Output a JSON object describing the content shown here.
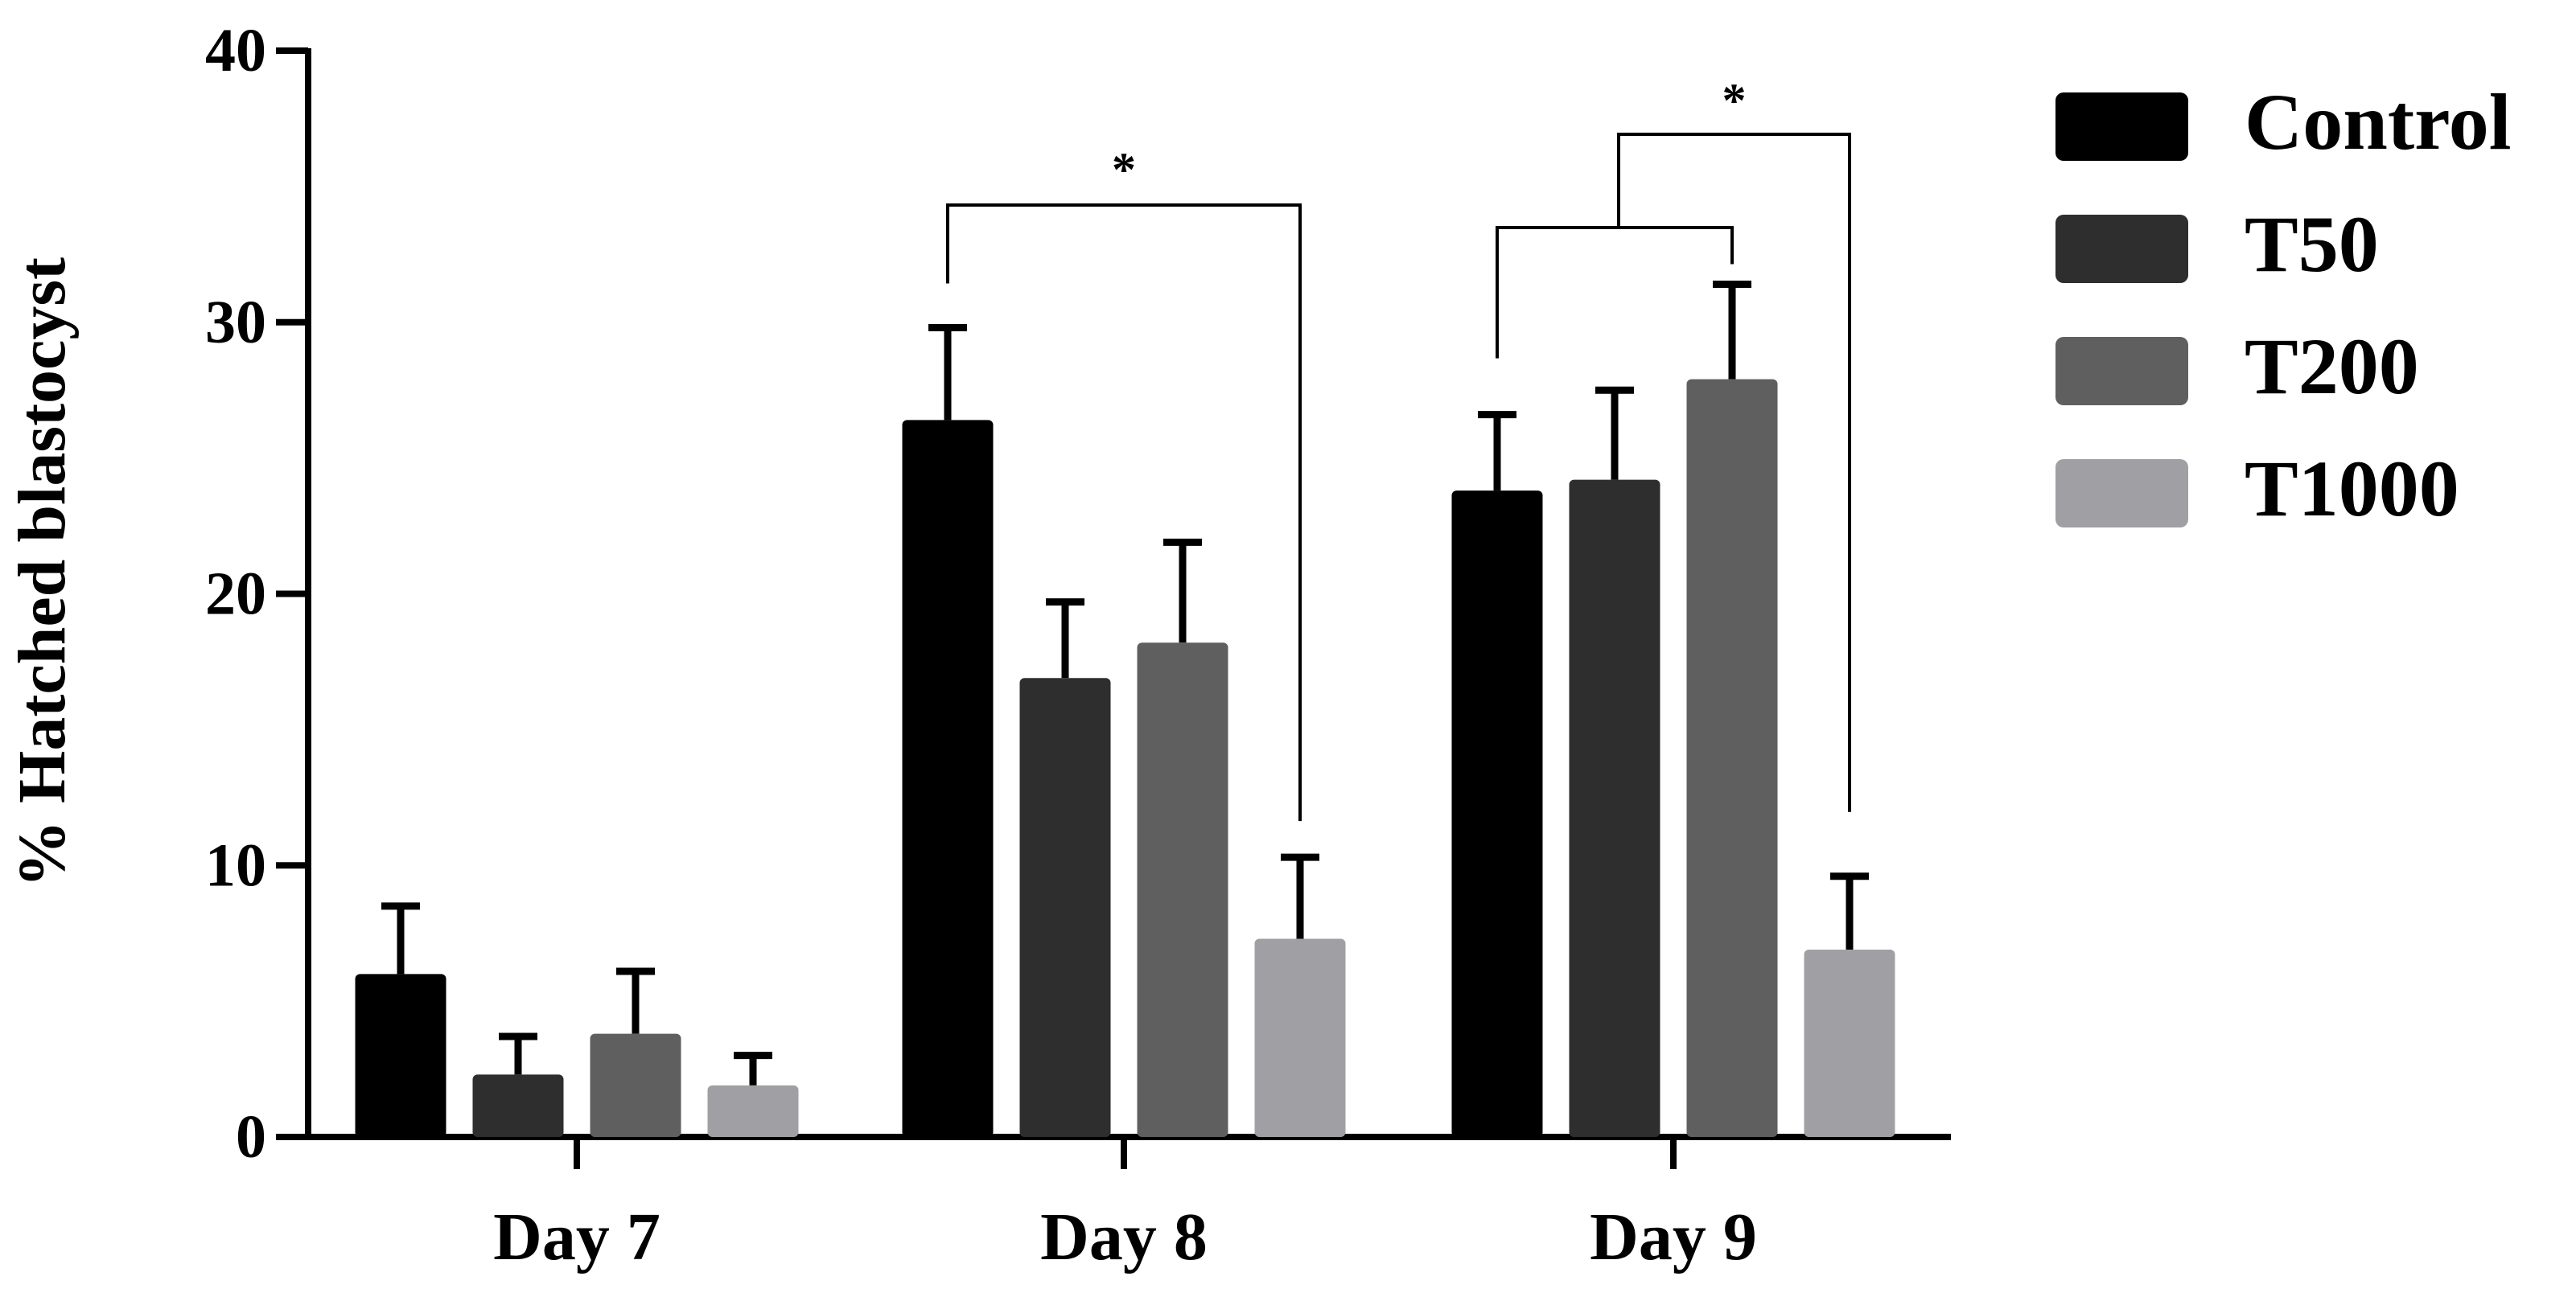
{
  "chart_data": {
    "type": "bar",
    "title": "",
    "xlabel": "",
    "ylabel": "% Hatched blastocyst",
    "ylim": [
      0,
      40
    ],
    "yticks": [
      0,
      10,
      20,
      30,
      40
    ],
    "categories": [
      "Day 7",
      "Day 8",
      "Day 9"
    ],
    "series": [
      {
        "name": "Control",
        "color": "#000000",
        "values": [
          6.0,
          26.4,
          23.8
        ],
        "errors": [
          2.5,
          3.4,
          2.8
        ]
      },
      {
        "name": "T50",
        "color": "#2e2e2e",
        "values": [
          2.3,
          16.9,
          24.2
        ],
        "errors": [
          1.4,
          2.8,
          3.3
        ]
      },
      {
        "name": "T200",
        "color": "#5f5f5f",
        "values": [
          3.8,
          18.2,
          27.9
        ],
        "errors": [
          2.3,
          3.7,
          3.5
        ]
      },
      {
        "name": "T1000",
        "color": "#a0a0a4",
        "values": [
          1.9,
          7.3,
          6.9
        ],
        "errors": [
          1.1,
          3.0,
          2.7
        ]
      }
    ],
    "significance": [
      {
        "category": "Day 8",
        "from": "Control",
        "to": "T1000",
        "label": "*"
      },
      {
        "category": "Day 9",
        "group": [
          "Control",
          "T200"
        ],
        "to": "T1000",
        "label": "*"
      }
    ],
    "legend_position": "right",
    "grid": false
  }
}
